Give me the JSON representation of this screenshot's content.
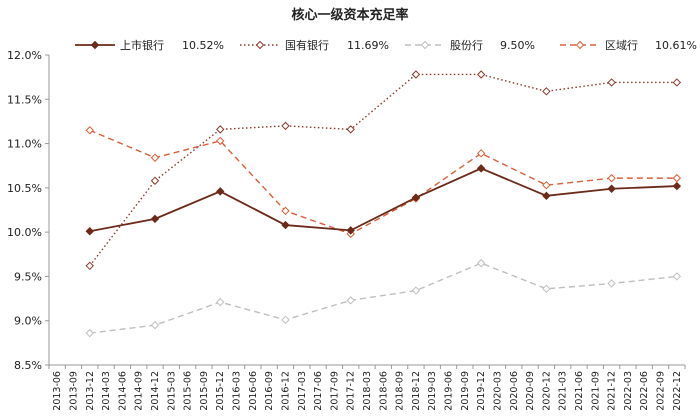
{
  "chart_data": {
    "type": "line",
    "title": "核心一级资本充足率",
    "xlabel": "",
    "ylabel": "",
    "ylim": [
      0.085,
      0.12
    ],
    "y_ticks": [
      "8.5%",
      "9.0%",
      "9.5%",
      "10.0%",
      "10.5%",
      "11.0%",
      "11.5%",
      "12.0%"
    ],
    "categories": [
      "2013-06",
      "2013-09",
      "2013-12",
      "2014-03",
      "2014-06",
      "2014-09",
      "2014-12",
      "2015-03",
      "2015-06",
      "2015-09",
      "2015-12",
      "2016-03",
      "2016-06",
      "2016-09",
      "2016-12",
      "2017-03",
      "2017-06",
      "2017-09",
      "2017-12",
      "2018-03",
      "2018-06",
      "2018-09",
      "2018-12",
      "2019-03",
      "2019-06",
      "2019-09",
      "2019-12",
      "2020-03",
      "2020-06",
      "2020-09",
      "2020-12",
      "2021-03",
      "2021-06",
      "2021-09",
      "2021-12",
      "2022-03",
      "2022-06",
      "2022-09",
      "2022-12"
    ],
    "legend_position": "top",
    "grid": false,
    "series": [
      {
        "name": "上市银行",
        "legend_value": "10.52%",
        "color": "#6b2a1a",
        "style": "solid",
        "marker": "filled-diamond",
        "points": [
          [
            "2013-12",
            0.1001
          ],
          [
            "2014-12",
            0.1015
          ],
          [
            "2015-12",
            0.1046
          ],
          [
            "2016-12",
            0.1008
          ],
          [
            "2017-12",
            0.1002
          ],
          [
            "2018-12",
            0.1039
          ],
          [
            "2019-12",
            0.1072
          ],
          [
            "2020-12",
            0.1041
          ],
          [
            "2021-12",
            0.1049
          ],
          [
            "2022-12",
            0.1052
          ]
        ]
      },
      {
        "name": "国有银行",
        "legend_value": "11.69%",
        "color": "#8b3a2a",
        "style": "dotted",
        "marker": "open-diamond",
        "points": [
          [
            "2013-12",
            0.0962
          ],
          [
            "2014-12",
            0.1058
          ],
          [
            "2015-12",
            0.1116
          ],
          [
            "2016-12",
            0.112
          ],
          [
            "2017-12",
            0.1116
          ],
          [
            "2018-12",
            0.1178
          ],
          [
            "2019-12",
            0.1178
          ],
          [
            "2020-12",
            0.1159
          ],
          [
            "2021-12",
            0.1169
          ],
          [
            "2022-12",
            0.1169
          ]
        ]
      },
      {
        "name": "股份行",
        "legend_value": "9.50%",
        "color": "#bfbfbf",
        "style": "dashed",
        "marker": "open-diamond",
        "points": [
          [
            "2013-12",
            0.0886
          ],
          [
            "2014-12",
            0.0895
          ],
          [
            "2015-12",
            0.0921
          ],
          [
            "2016-12",
            0.0901
          ],
          [
            "2017-12",
            0.0923
          ],
          [
            "2018-12",
            0.0934
          ],
          [
            "2019-12",
            0.0965
          ],
          [
            "2020-12",
            0.0936
          ],
          [
            "2021-12",
            0.0942
          ],
          [
            "2022-12",
            0.095
          ]
        ]
      },
      {
        "name": "区域行",
        "legend_value": "10.61%",
        "color": "#d9603b",
        "style": "dashed",
        "marker": "open-diamond",
        "points": [
          [
            "2013-12",
            0.1115
          ],
          [
            "2014-12",
            0.1084
          ],
          [
            "2015-12",
            0.1103
          ],
          [
            "2016-12",
            0.1024
          ],
          [
            "2017-12",
            0.0998
          ],
          [
            "2018-12",
            0.1038
          ],
          [
            "2019-12",
            0.1089
          ],
          [
            "2020-12",
            0.1053
          ],
          [
            "2021-12",
            0.1061
          ],
          [
            "2022-12",
            0.1061
          ]
        ]
      }
    ]
  }
}
